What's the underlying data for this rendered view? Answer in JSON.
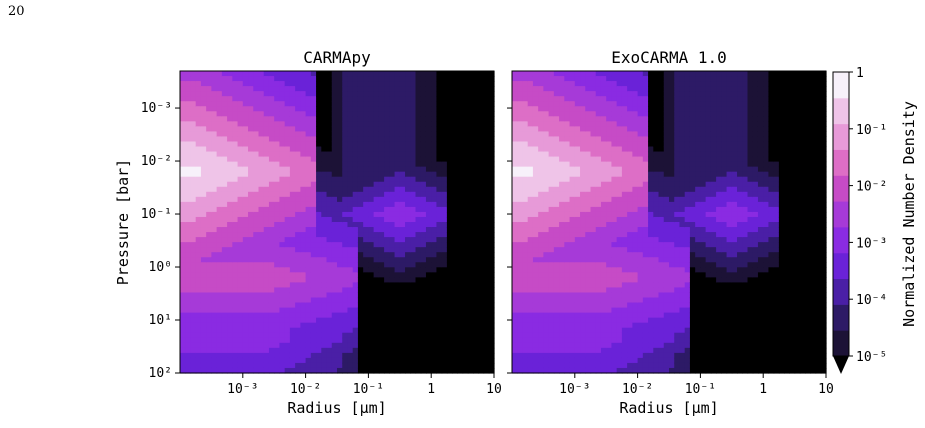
{
  "page_number": "20",
  "chart_data": [
    {
      "type": "heatmap",
      "title": "CARMApy",
      "xlabel": "Radius [μm]",
      "ylabel": "Pressure [bar]",
      "x_scale": "log",
      "y_scale": "log",
      "y_inverted": true,
      "xlim": [
        0.0001,
        10
      ],
      "ylim": [
        100,
        0.0002
      ],
      "x_ticks": [
        "10⁻³",
        "10⁻²",
        "10⁻¹",
        "1",
        "10"
      ],
      "y_ticks": [
        "10⁻³",
        "10⁻²",
        "10⁻¹",
        "10⁰",
        "10¹",
        "10²"
      ]
    },
    {
      "type": "heatmap",
      "title": "ExoCARMA 1.0",
      "xlabel": "Radius [μm]",
      "x_scale": "log",
      "y_scale": "log",
      "y_inverted": true,
      "xlim": [
        0.0001,
        10
      ],
      "ylim": [
        100,
        0.0002
      ],
      "x_ticks": [
        "10⁻³",
        "10⁻²",
        "10⁻¹",
        "1",
        "10"
      ]
    }
  ],
  "colorbar": {
    "label": "Normalized Number Density",
    "scale": "log",
    "range": [
      1e-05,
      1
    ],
    "ticks": [
      "1",
      "10⁻¹",
      "10⁻²",
      "10⁻³",
      "10⁻⁴",
      "10⁻⁵"
    ],
    "colors": [
      "#000000",
      "#1c1236",
      "#2d1a66",
      "#4a1fa6",
      "#6a22d8",
      "#8a2be2",
      "#a63ad8",
      "#c64bc6",
      "#dd6ec6",
      "#e79ad8",
      "#efc4e8",
      "#f7f1fa"
    ]
  }
}
